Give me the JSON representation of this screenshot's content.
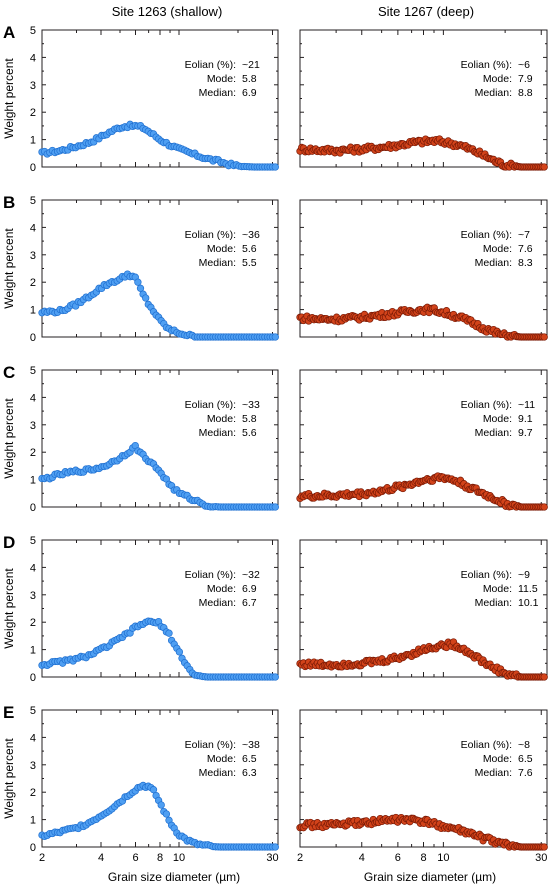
{
  "column_titles": [
    "Site 1263 (shallow)",
    "Site 1267 (deep)"
  ],
  "ylabel": "Weight percent",
  "xlabel": "Grain size diameter (µm)",
  "yticks": [
    "0",
    "1",
    "2",
    "3",
    "4",
    "5"
  ],
  "xticks": [
    "2",
    "4",
    "6",
    "8",
    "10",
    "30"
  ],
  "ann_labels": [
    "Eolian (%):",
    "Mode:",
    "Median:"
  ],
  "colors": {
    "shallow_fill": "#4f9ff2",
    "shallow_edge": "#1f6fd0",
    "deep_fill": "#d2431a",
    "deep_edge": "#7a1a06",
    "frame": "#231f20"
  },
  "chart_data": [
    {
      "type": "scatter",
      "letter": "A",
      "site": "Site 1263 (shallow)",
      "xscale": "log",
      "xlim": [
        2,
        32
      ],
      "ylim": [
        0,
        5
      ],
      "annot": {
        "eolian": "~21",
        "mode": "5.8",
        "median": "6.9"
      },
      "x": [
        2,
        2.5,
        3,
        3.5,
        4,
        4.5,
        5,
        5.5,
        6,
        6.5,
        7,
        8,
        9,
        10,
        12,
        14,
        16,
        18,
        20,
        24,
        28,
        31
      ],
      "y": [
        0.5,
        0.6,
        0.75,
        0.9,
        1.1,
        1.3,
        1.45,
        1.5,
        1.5,
        1.45,
        1.3,
        1.0,
        0.8,
        0.65,
        0.45,
        0.3,
        0.2,
        0.1,
        0.03,
        0,
        0,
        0
      ]
    },
    {
      "type": "scatter",
      "letter": "A",
      "site": "Site 1267 (deep)",
      "xscale": "log",
      "xlim": [
        2,
        32
      ],
      "ylim": [
        0,
        5
      ],
      "annot": {
        "eolian": "~6",
        "mode": "7.9",
        "median": "8.8"
      },
      "x": [
        2,
        2.5,
        3,
        4,
        5,
        6,
        7,
        8,
        9,
        10,
        12,
        14,
        16,
        18,
        20,
        24,
        28,
        31
      ],
      "y": [
        0.65,
        0.62,
        0.6,
        0.65,
        0.72,
        0.8,
        0.88,
        0.93,
        0.95,
        0.92,
        0.8,
        0.6,
        0.4,
        0.2,
        0.07,
        0,
        0,
        0
      ]
    },
    {
      "type": "scatter",
      "letter": "B",
      "site": "Site 1263 (shallow)",
      "xscale": "log",
      "xlim": [
        2,
        32
      ],
      "ylim": [
        0,
        5
      ],
      "annot": {
        "eolian": "~36",
        "mode": "5.6",
        "median": "5.5"
      },
      "x": [
        2,
        2.5,
        3,
        3.5,
        4,
        4.5,
        5,
        5.5,
        6,
        6.5,
        7,
        8,
        9,
        10,
        12,
        14,
        16,
        18,
        20,
        24,
        28,
        31
      ],
      "y": [
        0.9,
        0.95,
        1.2,
        1.5,
        1.8,
        2.0,
        2.1,
        2.3,
        2.15,
        1.6,
        1.2,
        0.6,
        0.25,
        0.15,
        0,
        0,
        0,
        0,
        0,
        0,
        0,
        0
      ]
    },
    {
      "type": "scatter",
      "letter": "B",
      "site": "Site 1267 (deep)",
      "xscale": "log",
      "xlim": [
        2,
        32
      ],
      "ylim": [
        0,
        5
      ],
      "annot": {
        "eolian": "~7",
        "mode": "7.6",
        "median": "8.3"
      },
      "x": [
        2,
        2.5,
        3,
        4,
        5,
        6,
        7,
        8,
        9,
        10,
        12,
        14,
        16,
        18,
        20,
        24,
        28,
        31
      ],
      "y": [
        0.7,
        0.65,
        0.65,
        0.72,
        0.8,
        0.88,
        0.95,
        1.0,
        0.98,
        0.9,
        0.72,
        0.5,
        0.3,
        0.15,
        0.05,
        0,
        0,
        0
      ]
    },
    {
      "type": "scatter",
      "letter": "C",
      "site": "Site 1263 (shallow)",
      "xscale": "log",
      "xlim": [
        2,
        32
      ],
      "ylim": [
        0,
        5
      ],
      "annot": {
        "eolian": "~33",
        "mode": "5.8",
        "median": "5.6"
      },
      "x": [
        2,
        2.5,
        3,
        3.5,
        4,
        4.5,
        5,
        5.5,
        6,
        6.5,
        7,
        8,
        9,
        10,
        12,
        14,
        16,
        18,
        20,
        24,
        28,
        31
      ],
      "y": [
        1.0,
        1.2,
        1.3,
        1.35,
        1.45,
        1.6,
        1.8,
        2.0,
        2.2,
        1.9,
        1.7,
        1.3,
        0.8,
        0.5,
        0.25,
        0.05,
        0,
        0,
        0,
        0,
        0,
        0
      ]
    },
    {
      "type": "scatter",
      "letter": "C",
      "site": "Site 1267 (deep)",
      "xscale": "log",
      "xlim": [
        2,
        32
      ],
      "ylim": [
        0,
        5
      ],
      "annot": {
        "eolian": "~11",
        "mode": "9.1",
        "median": "9.7"
      },
      "x": [
        2,
        2.5,
        3,
        4,
        5,
        6,
        7,
        8,
        9,
        10,
        11,
        12,
        14,
        16,
        18,
        20,
        24,
        28,
        31
      ],
      "y": [
        0.4,
        0.4,
        0.42,
        0.48,
        0.58,
        0.72,
        0.85,
        0.98,
        1.05,
        1.08,
        1.0,
        0.9,
        0.65,
        0.45,
        0.28,
        0.12,
        0,
        0,
        0
      ]
    },
    {
      "type": "scatter",
      "letter": "D",
      "site": "Site 1263 (shallow)",
      "xscale": "log",
      "xlim": [
        2,
        32
      ],
      "ylim": [
        0,
        5
      ],
      "annot": {
        "eolian": "~32",
        "mode": "6.9",
        "median": "6.7"
      },
      "x": [
        2,
        2.5,
        3,
        3.5,
        4,
        4.5,
        5,
        5.5,
        6,
        6.5,
        7,
        7.5,
        8,
        9,
        10,
        11,
        12,
        14,
        16,
        20,
        24,
        28,
        31
      ],
      "y": [
        0.45,
        0.55,
        0.65,
        0.8,
        1.0,
        1.2,
        1.4,
        1.6,
        1.8,
        1.95,
        2.0,
        2.0,
        1.95,
        1.5,
        0.9,
        0.4,
        0.05,
        0,
        0,
        0,
        0,
        0,
        0
      ]
    },
    {
      "type": "scatter",
      "letter": "D",
      "site": "Site 1267 (deep)",
      "xscale": "log",
      "xlim": [
        2,
        32
      ],
      "ylim": [
        0,
        5
      ],
      "annot": {
        "eolian": "~9",
        "mode": "11.5",
        "median": "10.1"
      },
      "x": [
        2,
        2.5,
        3,
        4,
        5,
        6,
        7,
        8,
        9,
        10,
        11,
        12,
        14,
        16,
        18,
        20,
        24,
        28,
        31
      ],
      "y": [
        0.48,
        0.45,
        0.45,
        0.5,
        0.58,
        0.7,
        0.85,
        1.0,
        1.1,
        1.15,
        1.2,
        1.1,
        0.8,
        0.5,
        0.3,
        0.12,
        0,
        0,
        0
      ]
    },
    {
      "type": "scatter",
      "letter": "E",
      "site": "Site 1263 (shallow)",
      "xscale": "log",
      "xlim": [
        2,
        32
      ],
      "ylim": [
        0,
        5
      ],
      "annot": {
        "eolian": "~38",
        "mode": "6.5",
        "median": "6.3"
      },
      "x": [
        2,
        2.5,
        3,
        3.5,
        4,
        4.5,
        5,
        5.5,
        6,
        6.5,
        7,
        7.5,
        8,
        9,
        10,
        11,
        12,
        14,
        16,
        20,
        24,
        28,
        31
      ],
      "y": [
        0.4,
        0.55,
        0.7,
        0.9,
        1.15,
        1.4,
        1.65,
        1.9,
        2.1,
        2.25,
        2.2,
        2.0,
        1.6,
        0.9,
        0.45,
        0.25,
        0.12,
        0.03,
        0,
        0,
        0,
        0,
        0
      ]
    },
    {
      "type": "scatter",
      "letter": "E",
      "site": "Site 1267 (deep)",
      "xscale": "log",
      "xlim": [
        2,
        32
      ],
      "ylim": [
        0,
        5
      ],
      "annot": {
        "eolian": "~8",
        "mode": "6.5",
        "median": "7.6"
      },
      "x": [
        2,
        2.5,
        3,
        4,
        5,
        6,
        7,
        8,
        9,
        10,
        12,
        14,
        16,
        18,
        20,
        24,
        28,
        31
      ],
      "y": [
        0.8,
        0.8,
        0.82,
        0.88,
        0.95,
        1.0,
        0.98,
        0.92,
        0.85,
        0.75,
        0.6,
        0.45,
        0.3,
        0.18,
        0.08,
        0,
        0,
        0
      ]
    }
  ]
}
